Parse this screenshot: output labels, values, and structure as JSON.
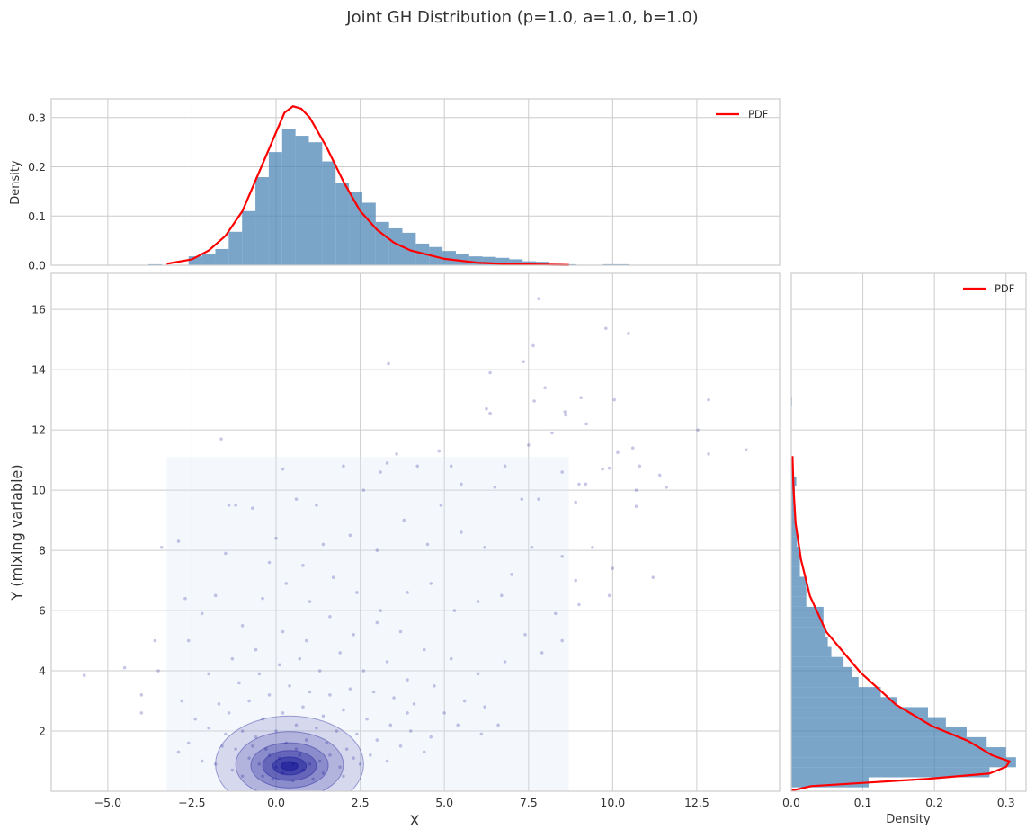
{
  "title": "Joint GH Distribution (p=1.0, a=1.0, b=1.0)",
  "chart_data": [
    {
      "panel": "top-marginal",
      "type": "bar",
      "ylabel": "Density",
      "xlim": [
        -6.68,
        14.96
      ],
      "ylim": [
        0,
        0.338
      ],
      "yticks": [
        "0.0",
        "0.1",
        "0.2",
        "0.3"
      ],
      "grid": true,
      "legend": {
        "position": "top-right",
        "entries": [
          "PDF"
        ]
      },
      "histogram": {
        "bin_start": -3.79,
        "bin_width": 0.397,
        "values": [
          0.002,
          0,
          0,
          0.018,
          0.023,
          0.033,
          0.068,
          0.11,
          0.179,
          0.23,
          0.277,
          0.263,
          0.25,
          0.211,
          0.167,
          0.149,
          0.127,
          0.088,
          0.075,
          0.066,
          0.044,
          0.037,
          0.029,
          0.022,
          0.018,
          0.017,
          0.015,
          0.012,
          0.008,
          0.007,
          0.003,
          0.002,
          0.001,
          0,
          0.002,
          0.002
        ],
        "color": "#4682b4"
      },
      "pdf": {
        "name": "PDF",
        "color": "#ff0000",
        "x": [
          -3.25,
          -2.5,
          -2,
          -1.5,
          -1,
          -0.5,
          0,
          0.25,
          0.5,
          0.75,
          1,
          1.5,
          2,
          2.5,
          3,
          3.5,
          4,
          5,
          6,
          7,
          8.7
        ],
        "y": [
          0.003,
          0.012,
          0.03,
          0.06,
          0.11,
          0.19,
          0.27,
          0.31,
          0.323,
          0.318,
          0.3,
          0.24,
          0.17,
          0.11,
          0.072,
          0.046,
          0.03,
          0.013,
          0.005,
          0.002,
          0.0005
        ]
      }
    },
    {
      "panel": "joint",
      "type": "scatter",
      "xlabel": "X",
      "ylabel": "Y (mixing variable)",
      "xlim": [
        -6.68,
        14.96
      ],
      "ylim": [
        0,
        17.2
      ],
      "xticks": [
        "−5.0",
        "−2.5",
        "0.0",
        "2.5",
        "5.0",
        "7.5",
        "10.0",
        "12.5"
      ],
      "yticks": [
        "2",
        "4",
        "6",
        "8",
        "10",
        "12",
        "14",
        "16"
      ],
      "grid": true,
      "point_color": "#00008b",
      "kde_region": {
        "x": [
          -3.25,
          8.7
        ],
        "y": [
          0,
          11.1
        ],
        "color": "#dbe9f6"
      },
      "kde_contours": [
        {
          "cx": 0.4,
          "cy": 0.9,
          "rx": 2.2,
          "ry": 1.6
        },
        {
          "cx": 0.4,
          "cy": 0.88,
          "rx": 1.6,
          "ry": 1.1
        },
        {
          "cx": 0.4,
          "cy": 0.86,
          "rx": 1.15,
          "ry": 0.75
        },
        {
          "cx": 0.4,
          "cy": 0.85,
          "rx": 0.8,
          "ry": 0.5
        },
        {
          "cx": 0.4,
          "cy": 0.84,
          "rx": 0.5,
          "ry": 0.3
        },
        {
          "cx": 0.4,
          "cy": 0.84,
          "rx": 0.25,
          "ry": 0.15
        }
      ],
      "points": [
        [
          7.8,
          16.36
        ],
        [
          9.8,
          15.37
        ],
        [
          10.47,
          15.2
        ],
        [
          3.34,
          14.2
        ],
        [
          7.64,
          14.8
        ],
        [
          7.35,
          14.27
        ],
        [
          6.36,
          13.9
        ],
        [
          7.99,
          13.4
        ],
        [
          7.67,
          12.96
        ],
        [
          9.06,
          13.07
        ],
        [
          10.05,
          13.0
        ],
        [
          12.85,
          13.0
        ],
        [
          6.25,
          12.7
        ],
        [
          6.36,
          12.55
        ],
        [
          8.58,
          12.6
        ],
        [
          8.6,
          12.5
        ],
        [
          9.22,
          12.2
        ],
        [
          8.2,
          11.9
        ],
        [
          12.53,
          12.0
        ],
        [
          13.97,
          11.34
        ],
        [
          12.85,
          11.2
        ],
        [
          10.6,
          11.4
        ],
        [
          10.15,
          11.25
        ],
        [
          -1.63,
          11.7
        ],
        [
          7.5,
          11.5
        ],
        [
          4.84,
          11.3
        ],
        [
          3.58,
          11.2
        ],
        [
          9.9,
          10.73
        ],
        [
          10.8,
          10.8
        ],
        [
          11.4,
          10.5
        ],
        [
          11.6,
          10.1
        ],
        [
          10.7,
          10.0
        ],
        [
          10.7,
          9.46
        ],
        [
          9.2,
          10.2
        ],
        [
          8.9,
          9.6
        ],
        [
          -5.7,
          3.85
        ],
        [
          -4.5,
          4.1
        ],
        [
          -4.0,
          3.2
        ],
        [
          -4.0,
          2.6
        ],
        [
          -3.6,
          5.0
        ],
        [
          -3.5,
          4.0
        ],
        [
          -3.4,
          8.1
        ],
        [
          -2.9,
          8.3
        ],
        [
          -2.7,
          6.4
        ],
        [
          -1.4,
          9.5
        ],
        [
          -1.2,
          9.5
        ],
        [
          -0.7,
          9.4
        ],
        [
          0.0,
          8.4
        ],
        [
          0.6,
          9.7
        ],
        [
          0.2,
          10.7
        ],
        [
          1.2,
          9.5
        ],
        [
          2.0,
          10.8
        ],
        [
          2.6,
          10.0
        ],
        [
          3.1,
          10.6
        ],
        [
          3.3,
          10.9
        ],
        [
          4.2,
          10.8
        ],
        [
          5.2,
          10.8
        ],
        [
          5.5,
          10.2
        ],
        [
          6.5,
          10.1
        ],
        [
          6.8,
          10.8
        ],
        [
          7.3,
          9.7
        ],
        [
          7.8,
          9.7
        ],
        [
          8.5,
          10.6
        ],
        [
          9.0,
          10.2
        ],
        [
          9.7,
          10.7
        ],
        [
          9.4,
          8.1
        ],
        [
          9.0,
          6.2
        ],
        [
          9.9,
          6.5
        ],
        [
          8.9,
          7.0
        ],
        [
          11.2,
          7.1
        ],
        [
          10.0,
          7.4
        ],
        [
          8.5,
          7.8
        ],
        [
          7.6,
          8.1
        ],
        [
          7.0,
          7.2
        ],
        [
          6.2,
          8.1
        ],
        [
          5.5,
          8.6
        ],
        [
          4.9,
          9.5
        ],
        [
          4.5,
          8.2
        ],
        [
          3.8,
          9.0
        ],
        [
          3.0,
          8.0
        ],
        [
          2.2,
          8.5
        ],
        [
          1.4,
          8.2
        ],
        [
          0.8,
          7.5
        ],
        [
          -0.2,
          7.6
        ],
        [
          -1.5,
          7.9
        ],
        [
          -2.2,
          5.9
        ],
        [
          -2.6,
          5.0
        ],
        [
          -1.8,
          6.5
        ],
        [
          -1.0,
          5.5
        ],
        [
          -0.4,
          6.4
        ],
        [
          0.3,
          6.9
        ],
        [
          1.0,
          6.3
        ],
        [
          1.7,
          7.1
        ],
        [
          2.4,
          6.6
        ],
        [
          3.1,
          6.0
        ],
        [
          3.9,
          6.6
        ],
        [
          4.6,
          6.9
        ],
        [
          5.3,
          6.0
        ],
        [
          6.0,
          6.3
        ],
        [
          6.7,
          6.5
        ],
        [
          7.4,
          5.2
        ],
        [
          8.3,
          5.9
        ],
        [
          8.5,
          5.0
        ],
        [
          7.9,
          4.6
        ],
        [
          6.8,
          4.3
        ],
        [
          6.0,
          3.9
        ],
        [
          5.2,
          4.4
        ],
        [
          4.4,
          4.7
        ],
        [
          3.7,
          5.3
        ],
        [
          3.0,
          5.6
        ],
        [
          2.3,
          5.2
        ],
        [
          1.6,
          5.8
        ],
        [
          0.9,
          5.0
        ],
        [
          0.2,
          5.3
        ],
        [
          -0.6,
          4.7
        ],
        [
          -1.3,
          4.4
        ],
        [
          -2.0,
          3.9
        ],
        [
          -2.8,
          3.0
        ],
        [
          -2.4,
          2.4
        ],
        [
          -1.7,
          2.9
        ],
        [
          -1.1,
          3.6
        ],
        [
          -0.5,
          3.9
        ],
        [
          0.1,
          4.2
        ],
        [
          0.7,
          4.4
        ],
        [
          1.3,
          4.0
        ],
        [
          1.9,
          4.6
        ],
        [
          2.6,
          4.0
        ],
        [
          3.3,
          4.3
        ],
        [
          3.9,
          3.7
        ],
        [
          4.7,
          3.5
        ],
        [
          5.6,
          3.0
        ],
        [
          6.2,
          2.8
        ],
        [
          5.0,
          2.6
        ],
        [
          4.1,
          2.9
        ],
        [
          3.5,
          3.1
        ],
        [
          2.9,
          3.3
        ],
        [
          2.2,
          3.4
        ],
        [
          1.6,
          3.2
        ],
        [
          1.0,
          3.3
        ],
        [
          0.4,
          3.5
        ],
        [
          -0.2,
          3.2
        ],
        [
          -0.8,
          3.0
        ],
        [
          -1.4,
          2.6
        ],
        [
          -2.0,
          2.1
        ],
        [
          -2.6,
          1.6
        ],
        [
          -2.9,
          1.3
        ],
        [
          -2.2,
          1.0
        ],
        [
          -1.6,
          1.5
        ],
        [
          -1.0,
          2.0
        ],
        [
          -0.4,
          2.4
        ],
        [
          0.2,
          2.6
        ],
        [
          0.8,
          2.8
        ],
        [
          1.4,
          2.5
        ],
        [
          2.0,
          2.7
        ],
        [
          2.7,
          2.4
        ],
        [
          3.4,
          2.2
        ],
        [
          4.0,
          2.0
        ],
        [
          4.6,
          1.8
        ],
        [
          3.7,
          1.5
        ],
        [
          3.0,
          1.7
        ],
        [
          2.4,
          1.9
        ],
        [
          1.8,
          2.0
        ],
        [
          1.2,
          2.1
        ],
        [
          0.6,
          2.2
        ],
        [
          0.0,
          2.0
        ],
        [
          -0.6,
          1.8
        ],
        [
          -1.2,
          1.4
        ],
        [
          -1.8,
          0.9
        ],
        [
          -1.3,
          0.7
        ],
        [
          -0.8,
          1.1
        ],
        [
          -0.3,
          1.4
        ],
        [
          0.3,
          1.6
        ],
        [
          0.9,
          1.7
        ],
        [
          1.5,
          1.6
        ],
        [
          2.1,
          1.4
        ],
        [
          2.8,
          1.2
        ],
        [
          3.3,
          1.0
        ],
        [
          2.5,
          0.9
        ],
        [
          1.9,
          0.8
        ],
        [
          1.3,
          1.0
        ],
        [
          0.7,
          1.2
        ],
        [
          0.1,
          1.1
        ],
        [
          -0.5,
          0.9
        ],
        [
          -1.0,
          0.5
        ],
        [
          -0.4,
          0.5
        ],
        [
          0.2,
          0.6
        ],
        [
          0.8,
          0.7
        ],
        [
          1.4,
          0.6
        ],
        [
          2.0,
          0.5
        ],
        [
          1.1,
          0.4
        ],
        [
          0.5,
          0.35
        ],
        [
          -0.1,
          0.4
        ],
        [
          0.0,
          0.8
        ],
        [
          0.5,
          0.9
        ],
        [
          1.0,
          0.9
        ],
        [
          -0.2,
          1.2
        ],
        [
          0.6,
          1.4
        ],
        [
          1.6,
          1.2
        ],
        [
          -0.7,
          1.5
        ],
        [
          2.3,
          1.1
        ],
        [
          -1.5,
          1.9
        ],
        [
          3.9,
          2.6
        ],
        [
          4.4,
          1.3
        ],
        [
          5.4,
          2.2
        ],
        [
          6.1,
          1.9
        ],
        [
          6.6,
          2.2
        ]
      ]
    },
    {
      "panel": "right-marginal",
      "type": "bar",
      "orientation": "horizontal",
      "xlabel": "Density",
      "xlim": [
        0,
        0.328
      ],
      "ylim": [
        0,
        17.2
      ],
      "xticks": [
        "0.0",
        "0.1",
        "0.2",
        "0.3"
      ],
      "grid": true,
      "legend": {
        "position": "top-right",
        "entries": [
          "PDF"
        ]
      },
      "histogram": {
        "bin_start": 0.13,
        "bin_width": 0.333,
        "values": [
          0.108,
          0.277,
          0.314,
          0.3,
          0.273,
          0.245,
          0.216,
          0.191,
          0.148,
          0.125,
          0.094,
          0.085,
          0.073,
          0.056,
          0.051,
          0.048,
          0.045,
          0.045,
          0.021,
          0.021,
          0.021,
          0.012,
          0.012,
          0.012,
          0.008,
          0.008,
          0.006,
          0.006,
          0.005,
          0.005,
          0.007,
          0.003,
          0.003,
          0,
          0,
          0,
          0,
          0,
          0.001
        ],
        "color": "#4682b4"
      },
      "pdf": {
        "name": "PDF",
        "color": "#ff0000",
        "y": [
          0.02,
          0.17,
          0.29,
          0.41,
          0.59,
          0.81,
          0.99,
          1.19,
          1.67,
          2.16,
          2.88,
          3.96,
          5.29,
          6.49,
          7.7,
          8.9,
          10.1,
          11.13
        ],
        "x": [
          0.0,
          0.028,
          0.108,
          0.19,
          0.277,
          0.3,
          0.305,
          0.281,
          0.247,
          0.197,
          0.146,
          0.096,
          0.049,
          0.026,
          0.0135,
          0.006,
          0.003,
          0.0017
        ]
      }
    }
  ]
}
